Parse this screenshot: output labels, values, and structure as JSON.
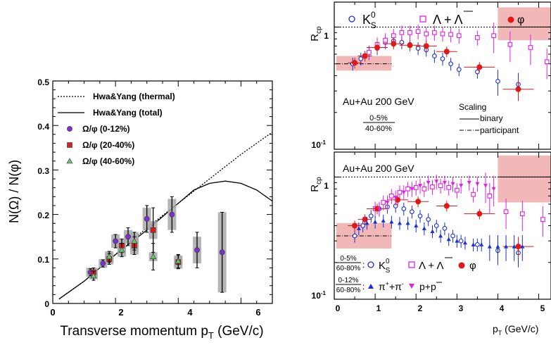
{
  "left_panel": {
    "xlabel_text": "Transverse momentum p",
    "xlabel_sub": "T",
    "xlabel_unit": " (GeV/c)",
    "ylabel": "N(Ω) / N(φ)",
    "xticks": [
      "0",
      "2",
      "4",
      "6"
    ],
    "yticks": [
      "0",
      "0.1",
      "0.2",
      "0.3",
      "0.4",
      "0.5"
    ],
    "legend": [
      {
        "label": "Hwa&Yang (thermal)",
        "kind": "dotted-line"
      },
      {
        "label": "Hwa&Yang (total)",
        "kind": "solid-line"
      },
      {
        "label": "Ω/φ (0-12%)",
        "kind": "circle",
        "color": "#7b2fd0"
      },
      {
        "label": "Ω/φ (20-40%)",
        "kind": "square",
        "color": "#d42020"
      },
      {
        "label": "Ω/φ (40-60%)",
        "kind": "triangle",
        "color": "#6cc070"
      }
    ]
  },
  "upper_right": {
    "ylabel": "R",
    "ylabel_sub": "cp",
    "yticks": [
      "1",
      "10"
    ],
    "ytick_exp": "-1",
    "legend_k0s": "K",
    "legend_k0s_sup": "0",
    "legend_k0s_sub": "S",
    "legend_lambda": "Λ + Λ",
    "legend_phi": "φ",
    "system_label": "Au+Au 200 GeV",
    "centrality_num": "0-5%",
    "centrality_den": "40-60%",
    "scaling_title": "Scaling",
    "scaling_binary": "binary",
    "scaling_participant": "participant"
  },
  "lower_right": {
    "ylabel": "R",
    "ylabel_sub": "cp",
    "yticks": [
      "1",
      "10"
    ],
    "ytick_exp": "-1",
    "system_label": "Au+Au 200 GeV",
    "row1_num": "0-5%",
    "row1_den": "60-80%",
    "row1_k0s": "K",
    "row1_k0s_sup": "0",
    "row1_k0s_sub": "S",
    "row1_lambda": "Λ + Λ",
    "row1_phi": "φ",
    "row2_num": "0-12%",
    "row2_den": "60-80%",
    "row2_pion": "π",
    "row2_pion_sup1": "+",
    "row2_pion_mid": "+π",
    "row2_pion_sup2": "-",
    "row2_proton": "p+p",
    "xticks": [
      "0",
      "1",
      "2",
      "3",
      "4",
      "5"
    ],
    "xlabel_text": "p",
    "xlabel_sub": "T",
    "xlabel_unit": " (GeV/c)"
  },
  "colors": {
    "blue": "#1a2fd6",
    "magenta": "#e020e0",
    "red": "#e01818",
    "purple": "#7b2fd0",
    "green": "#6cc070",
    "band": "#f2b8b8",
    "gray_box": "#a8a8a8"
  },
  "chart_data": [
    {
      "type": "scatter",
      "panel": "left",
      "xlabel": "Transverse momentum pT (GeV/c)",
      "ylabel": "N(Ω) / N(φ)",
      "xlim": [
        0,
        7
      ],
      "ylim": [
        0,
        0.5
      ],
      "series": [
        {
          "name": "Ω/φ (0-12%)",
          "x": [
            1.2,
            1.6,
            2.0,
            2.4,
            3.0,
            3.8,
            4.6,
            5.4
          ],
          "y": [
            0.07,
            0.09,
            0.14,
            0.15,
            0.19,
            0.2,
            0.12,
            0.115
          ],
          "err": [
            0.008,
            0.008,
            0.015,
            0.02,
            0.03,
            0.04,
            0.04,
            0.09
          ],
          "sys": [
            0.01,
            0.01,
            0.015,
            0.015,
            0.025,
            0.035,
            0.03,
            0.09
          ]
        },
        {
          "name": "Ω/φ (20-40%)",
          "x": [
            1.3,
            1.8,
            2.2,
            2.6,
            3.2,
            4.0
          ],
          "y": [
            0.07,
            0.1,
            0.13,
            0.13,
            0.165,
            0.093
          ],
          "err": [
            0.01,
            0.012,
            0.015,
            0.02,
            0.05,
            0.015
          ],
          "sys": [
            0.01,
            0.012,
            0.015,
            0.02,
            0.02,
            0.015
          ]
        },
        {
          "name": "Ω/φ (40-60%)",
          "x": [
            1.3,
            1.8,
            2.2,
            2.6,
            3.2,
            4.0
          ],
          "y": [
            0.062,
            0.105,
            0.12,
            0.14,
            0.105,
            0.095
          ],
          "err": [
            0.01,
            0.012,
            0.015,
            0.02,
            0.03,
            0.015
          ],
          "sys": [
            0.008,
            0.012,
            0.015,
            0.02,
            0.01,
            0.01
          ]
        },
        {
          "name": "Hwa&Yang (thermal)",
          "line": "dotted",
          "x": [
            0.2,
            1,
            2,
            3,
            4,
            5,
            6,
            7
          ],
          "y": [
            0.01,
            0.05,
            0.11,
            0.17,
            0.225,
            0.28,
            0.335,
            0.385
          ]
        },
        {
          "name": "Hwa&Yang (total)",
          "line": "solid",
          "x": [
            0.2,
            1,
            2,
            3,
            4,
            4.5,
            5,
            5.5,
            6,
            6.5,
            7
          ],
          "y": [
            0.01,
            0.05,
            0.11,
            0.165,
            0.225,
            0.255,
            0.27,
            0.275,
            0.27,
            0.255,
            0.23
          ]
        }
      ]
    },
    {
      "type": "scatter",
      "panel": "upper-right",
      "ylabel": "Rcp",
      "xlim": [
        0,
        5.3
      ],
      "ylim": [
        0.1,
        1.6
      ],
      "yscale": "log",
      "series": [
        {
          "name": "K0S",
          "marker": "open-circle",
          "x": [
            0.45,
            0.65,
            0.85,
            1.05,
            1.25,
            1.45,
            1.65,
            1.85,
            2.05,
            2.25,
            2.45,
            2.65,
            2.85,
            3.05,
            3.5,
            4.0,
            4.5
          ],
          "y": [
            0.5,
            0.55,
            0.62,
            0.67,
            0.75,
            0.77,
            0.75,
            0.72,
            0.67,
            0.65,
            0.58,
            0.55,
            0.5,
            0.45,
            0.43,
            0.36,
            0.34
          ]
        },
        {
          "name": "Λ + anti-Λ",
          "marker": "open-square",
          "x": [
            0.85,
            1.05,
            1.25,
            1.45,
            1.65,
            1.85,
            2.05,
            2.25,
            2.45,
            2.65,
            2.85,
            3.05,
            3.5,
            3.9,
            4.3,
            4.8,
            5.2
          ],
          "y": [
            0.62,
            0.72,
            0.78,
            0.85,
            0.9,
            0.9,
            0.92,
            0.88,
            0.9,
            0.88,
            0.87,
            0.85,
            0.82,
            0.85,
            0.72,
            0.68,
            0.52
          ]
        },
        {
          "name": "φ",
          "marker": "filled-circle",
          "x": [
            0.5,
            0.75,
            1.05,
            1.45,
            1.85,
            2.25,
            2.75,
            3.55,
            4.5
          ],
          "y": [
            0.51,
            0.58,
            0.68,
            0.73,
            0.71,
            0.7,
            0.63,
            0.47,
            0.31
          ]
        }
      ]
    },
    {
      "type": "scatter",
      "panel": "lower-right",
      "ylabel": "Rcp",
      "xlabel": "pT (GeV/c)",
      "xlim": [
        0,
        5.3
      ],
      "ylim": [
        0.1,
        1.6
      ],
      "yscale": "log",
      "series": [
        {
          "name": "K0S",
          "marker": "open-circle",
          "x": [
            0.5,
            0.7,
            0.9,
            1.1,
            1.3,
            1.5,
            1.7,
            1.9,
            2.1,
            2.3,
            2.5,
            2.7,
            2.9,
            3.1,
            3.5,
            4.0,
            4.5
          ],
          "y": [
            0.33,
            0.4,
            0.48,
            0.55,
            0.57,
            0.58,
            0.55,
            0.52,
            0.48,
            0.45,
            0.4,
            0.38,
            0.33,
            0.3,
            0.28,
            0.25,
            0.24
          ]
        },
        {
          "name": "Λ + anti-Λ",
          "marker": "open-square",
          "x": [
            1.0,
            1.2,
            1.4,
            1.6,
            1.8,
            2.0,
            2.2,
            2.4,
            2.6,
            2.8,
            3.0,
            3.4,
            3.8,
            4.2,
            4.6,
            5.1
          ],
          "y": [
            0.55,
            0.62,
            0.7,
            0.75,
            0.8,
            0.82,
            0.8,
            0.83,
            0.85,
            0.82,
            0.78,
            0.72,
            0.7,
            0.52,
            0.5,
            0.45
          ]
        },
        {
          "name": "φ",
          "marker": "filled-circle",
          "x": [
            0.5,
            0.75,
            1.05,
            1.55,
            2.05,
            2.75,
            3.55,
            4.5
          ],
          "y": [
            0.4,
            0.45,
            0.55,
            0.65,
            0.63,
            0.58,
            0.5,
            0.27
          ]
        },
        {
          "name": "π+ + π-",
          "marker": "filled-triangle",
          "x": [
            0.6,
            0.8,
            1.0,
            1.2,
            1.4,
            1.6,
            1.8,
            2.0,
            2.2,
            2.4,
            2.6,
            2.8,
            3.0,
            3.2,
            3.4,
            3.6,
            3.8,
            4.0,
            4.2,
            4.4,
            4.6
          ],
          "y": [
            0.38,
            0.42,
            0.43,
            0.44,
            0.43,
            0.42,
            0.42,
            0.4,
            0.38,
            0.36,
            0.33,
            0.31,
            0.3,
            0.29,
            0.28,
            0.28,
            0.27,
            0.27,
            0.27,
            0.27,
            0.27
          ]
        },
        {
          "name": "p + anti-p",
          "marker": "filled-down-triangle",
          "x": [
            1.1,
            1.3,
            1.5,
            1.7,
            1.9,
            2.1,
            2.3,
            2.5,
            2.7,
            2.9,
            3.1,
            3.3,
            3.5,
            3.7,
            3.9
          ],
          "y": [
            0.55,
            0.62,
            0.68,
            0.75,
            0.8,
            0.85,
            0.9,
            0.92,
            0.9,
            0.88,
            0.85,
            0.9,
            0.88,
            0.85,
            0.8
          ]
        }
      ]
    }
  ]
}
